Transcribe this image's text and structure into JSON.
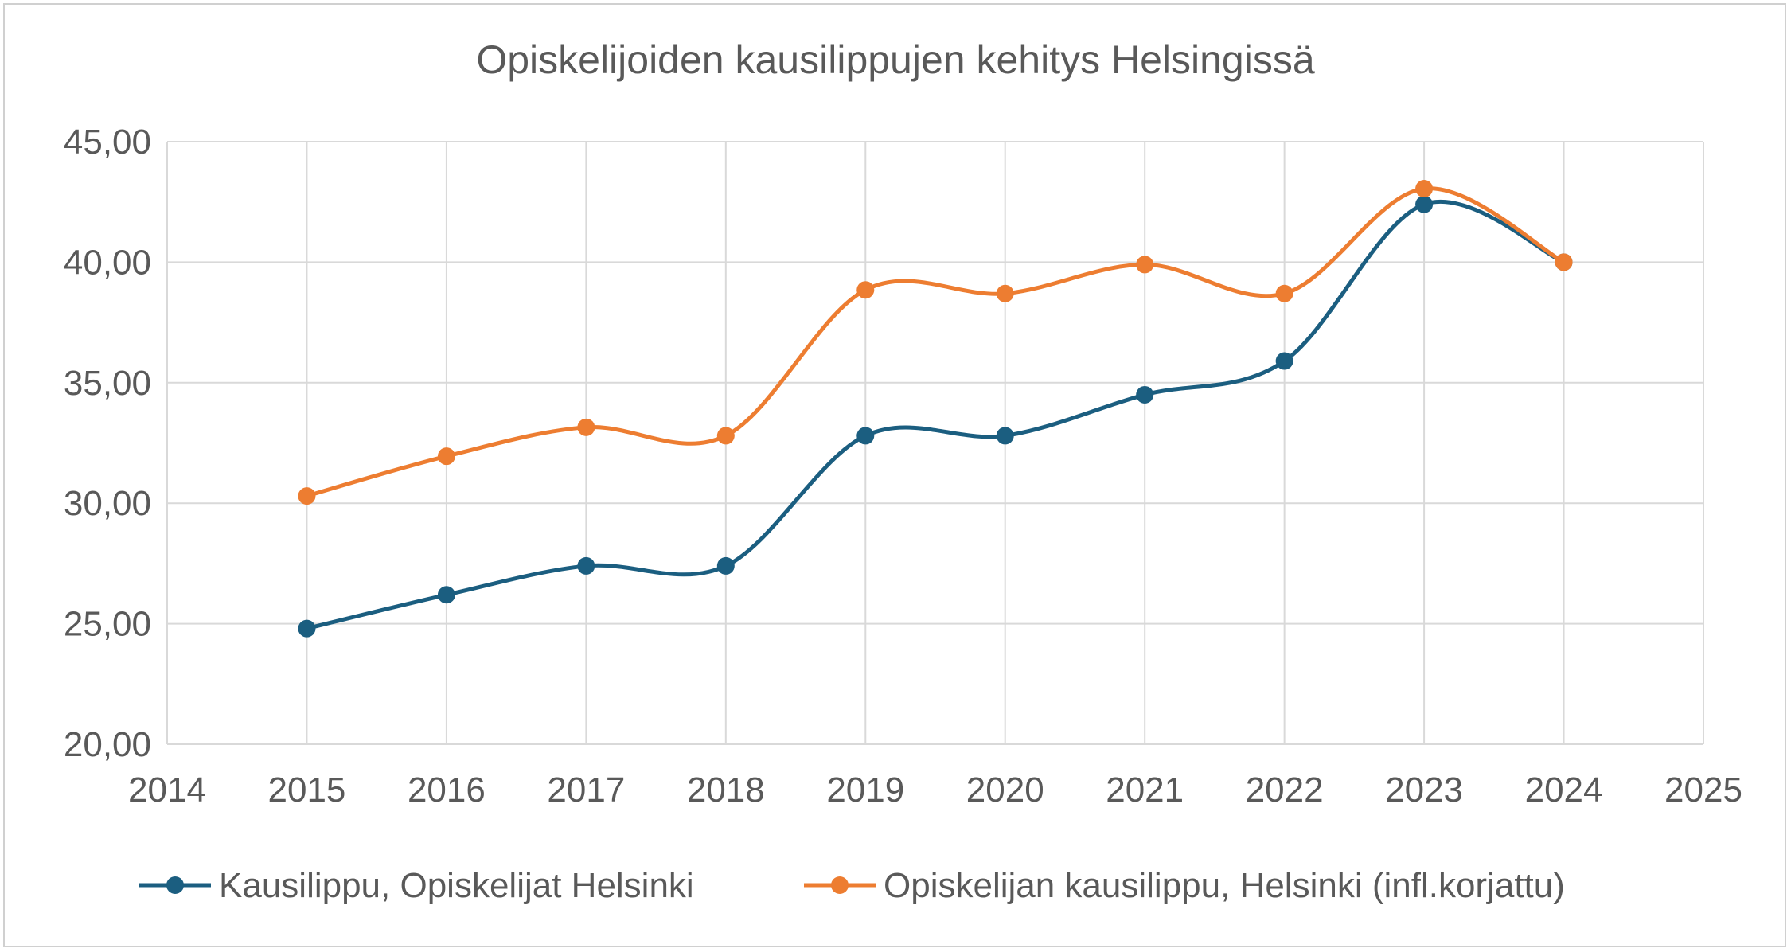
{
  "chart_data": {
    "type": "line",
    "title": "Opiskelijoiden kausilippujen kehitys Helsingissä",
    "xlabel": "",
    "ylabel": "",
    "x": [
      2015,
      2016,
      2017,
      2018,
      2019,
      2020,
      2021,
      2022,
      2023,
      2024
    ],
    "xlim": [
      2014,
      2025
    ],
    "x_ticks": [
      "2014",
      "2015",
      "2016",
      "2017",
      "2018",
      "2019",
      "2020",
      "2021",
      "2022",
      "2023",
      "2024",
      "2025"
    ],
    "ylim": [
      20,
      45
    ],
    "y_ticks": [
      "20,00",
      "25,00",
      "30,00",
      "35,00",
      "40,00",
      "45,00"
    ],
    "grid": true,
    "smooth": true,
    "legend_position": "bottom",
    "series": [
      {
        "name": "Kausilippu, Opiskelijat Helsinki",
        "color": "#1b5e80",
        "values": [
          24.8,
          26.2,
          27.4,
          27.4,
          32.8,
          32.8,
          34.5,
          35.9,
          42.4,
          40.0
        ]
      },
      {
        "name": "Opiskelijan kausilippu, Helsinki (infl.korjattu)",
        "color": "#ed7d31",
        "values": [
          30.3,
          31.95,
          33.15,
          32.8,
          38.85,
          38.7,
          39.9,
          38.7,
          43.05,
          40.0
        ]
      }
    ]
  }
}
